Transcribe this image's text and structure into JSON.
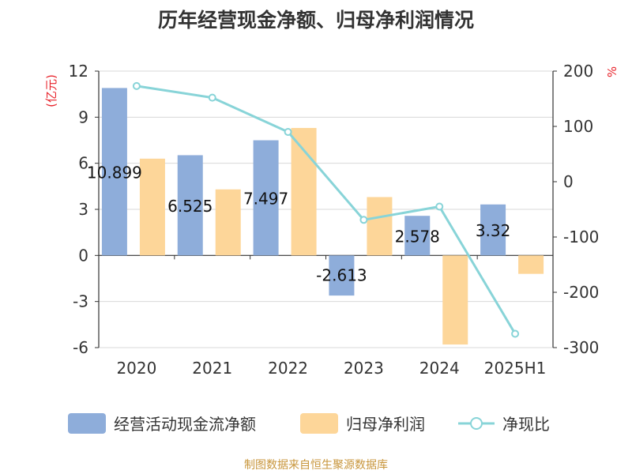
{
  "title": "历年经营现金净额、归母净利润情况",
  "source": "制图数据来自恒生聚源数据库",
  "colors": {
    "cash_flow": "#8eadda",
    "net_profit": "#fdd699",
    "ratio": "#88d4d8",
    "axis_unit": "#e8232b",
    "grid": "#d8d8d8",
    "axis": "#333333"
  },
  "chart_data": {
    "type": "bar",
    "categories": [
      "2020",
      "2021",
      "2022",
      "2023",
      "2024",
      "2025H1"
    ],
    "y_left": {
      "label": "(亿元)",
      "range": [
        -6,
        12
      ],
      "ticks": [
        "-6",
        "-3",
        "0",
        "3",
        "6",
        "9",
        "12"
      ]
    },
    "y_right": {
      "label": "%",
      "range": [
        -300,
        200
      ],
      "ticks": [
        "-300",
        "-200",
        "-100",
        "0",
        "100",
        "200"
      ]
    },
    "grid": true,
    "legend_position": "bottom",
    "series": [
      {
        "name": "经营活动现金流净额",
        "type": "bar",
        "axis": "left",
        "values": [
          10.899,
          6.525,
          7.497,
          -2.613,
          2.578,
          3.32
        ],
        "labels": [
          "10.899",
          "6.525",
          "7.497",
          "-2.613",
          "2.578",
          "3.32"
        ]
      },
      {
        "name": "归母净利润",
        "type": "bar",
        "axis": "left",
        "values": [
          6.3,
          4.3,
          8.3,
          3.8,
          -5.8,
          -1.2
        ]
      },
      {
        "name": "净现比",
        "type": "line",
        "axis": "right",
        "values": [
          173,
          152,
          90,
          -69,
          -45,
          -275
        ]
      }
    ]
  }
}
